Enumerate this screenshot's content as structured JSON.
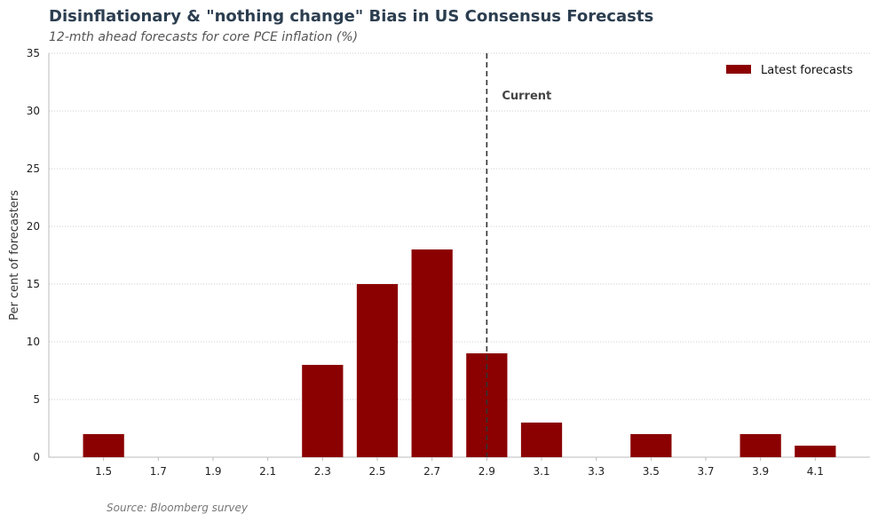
{
  "chart_data": {
    "type": "bar",
    "title": "Disinflationary & \"nothing change\" Bias in US Consensus Forecasts",
    "subtitle": "12-mth ahead forecasts for core PCE inflation (%)",
    "xlabel": "",
    "ylabel": "Per cent of forecasters",
    "x": [
      1.5,
      1.7,
      1.9,
      2.1,
      2.3,
      2.5,
      2.7,
      2.9,
      3.1,
      3.3,
      3.5,
      3.7,
      3.9,
      4.1
    ],
    "x_tick_labels": [
      "1.5",
      "1.7",
      "1.9",
      "2.1",
      "2.3",
      "2.5",
      "2.7",
      "2.9",
      "3.1",
      "3.3",
      "3.5",
      "3.7",
      "3.9",
      "4.1"
    ],
    "series": [
      {
        "name": "Latest forecasts",
        "values": [
          2,
          0,
          0,
          0,
          8,
          15,
          18,
          9,
          3,
          0,
          2,
          0,
          2,
          1
        ],
        "color": "#8b0000"
      }
    ],
    "ylim": [
      0,
      35
    ],
    "xlim": [
      1.3,
      4.3
    ],
    "y_ticks": [
      0,
      5,
      10,
      15,
      20,
      25,
      30,
      35
    ],
    "grid": true,
    "legend_position": "top-right",
    "annotations": [
      {
        "type": "vline",
        "x": 2.9,
        "label": "Current"
      }
    ],
    "source": "Source: Bloomberg survey"
  }
}
